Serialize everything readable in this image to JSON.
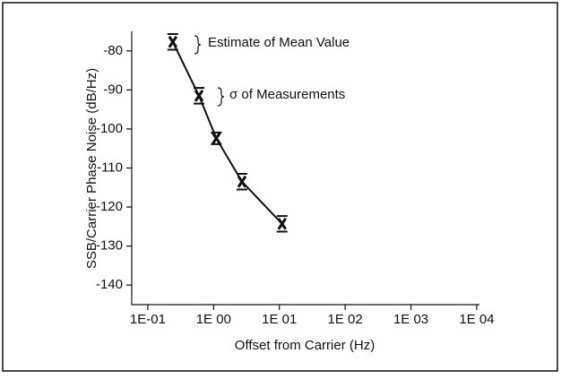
{
  "chart_data": {
    "type": "line",
    "x_label": "Offset from Carrier (Hz)",
    "y_label": "SSB/Carrier Phase Noise (dB/Hz)",
    "annotations": [
      "Estimate of Mean Value",
      "σ of Measurements"
    ],
    "x": [
      0.24,
      0.6,
      1.1,
      2.7,
      11
    ],
    "series": [
      {
        "color": "#111111",
        "values": [
          -77.7,
          -91.5,
          -102.4,
          -113.5,
          -124.3
        ],
        "errors": [
          2,
          2,
          1.5,
          2,
          2
        ]
      }
    ],
    "xscale": "log",
    "xlim": [
      0.057,
      11000
    ],
    "xticks": [
      {
        "value": 0.1,
        "label": "1E-01"
      },
      {
        "value": 1,
        "label": "1E 00"
      },
      {
        "value": 10,
        "label": "1E 01"
      },
      {
        "value": 100,
        "label": "1E 02"
      },
      {
        "value": 1000,
        "label": "1E 03"
      },
      {
        "value": 10000,
        "label": "1E 04"
      }
    ],
    "ylim": [
      -145,
      -75
    ],
    "yticks": [
      -80,
      -90,
      -100,
      -110,
      -120,
      -130,
      -140
    ]
  }
}
